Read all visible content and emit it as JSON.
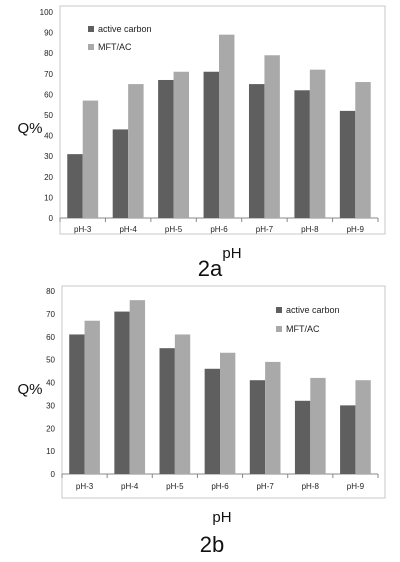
{
  "chart_data": [
    {
      "type": "bar",
      "caption": "2a",
      "xlabel": "pH",
      "ylabel": "Q%",
      "ylim": [
        0,
        100
      ],
      "yticks": [
        0,
        10,
        20,
        30,
        40,
        50,
        60,
        70,
        80,
        90,
        100
      ],
      "categories": [
        "pH-3",
        "pH-4",
        "pH-5",
        "pH-6",
        "pH-7",
        "pH-8",
        "pH-9"
      ],
      "series": [
        {
          "name": "active carbon",
          "color": "#5f5f5f",
          "values": [
            31,
            43,
            67,
            71,
            65,
            62,
            52
          ]
        },
        {
          "name": "MFT/AC",
          "color": "#a9a9a9",
          "values": [
            57,
            65,
            71,
            89,
            79,
            72,
            66
          ]
        }
      ],
      "grid": false,
      "legend": "top-left"
    },
    {
      "type": "bar",
      "caption": "2b",
      "xlabel": "pH",
      "ylabel": "Q%",
      "ylim": [
        0,
        80
      ],
      "yticks": [
        0,
        10,
        20,
        30,
        40,
        50,
        60,
        70,
        80
      ],
      "categories": [
        "pH-3",
        "pH-4",
        "pH-5",
        "pH-6",
        "pH-7",
        "pH-8",
        "pH-9"
      ],
      "series": [
        {
          "name": "active carbon",
          "color": "#5f5f5f",
          "values": [
            61,
            71,
            55,
            46,
            41,
            32,
            30
          ]
        },
        {
          "name": "MFT/AC",
          "color": "#a9a9a9",
          "values": [
            67,
            76,
            61,
            53,
            49,
            42,
            41
          ]
        }
      ],
      "grid": false,
      "legend": "top-right"
    }
  ]
}
